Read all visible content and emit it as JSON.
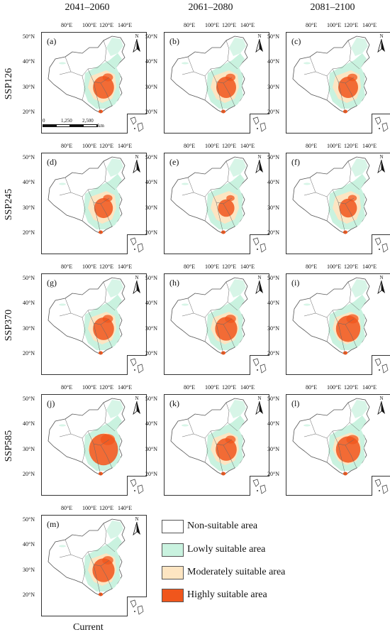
{
  "columns": [
    "2041–2060",
    "2061–2080",
    "2081–2100"
  ],
  "rows": [
    "SSP126",
    "SSP245",
    "SSP370",
    "SSP585"
  ],
  "bottom_label": "Current",
  "lon_ticks": [
    "80°E",
    "100°E",
    "120°E",
    "140°E"
  ],
  "lat_ticks": [
    "50°N",
    "40°N",
    "30°N",
    "20°N"
  ],
  "north_label": "N",
  "scale": {
    "zero": "0",
    "mid": "1,250",
    "end": "2,500",
    "unit": "km"
  },
  "panels": [
    {
      "tag": "(a)",
      "high_level": 0.55
    },
    {
      "tag": "(b)",
      "high_level": 0.5
    },
    {
      "tag": "(c)",
      "high_level": 0.5
    },
    {
      "tag": "(d)",
      "high_level": 0.45
    },
    {
      "tag": "(e)",
      "high_level": 0.35
    },
    {
      "tag": "(f)",
      "high_level": 0.4
    },
    {
      "tag": "(g)",
      "high_level": 0.55
    },
    {
      "tag": "(h)",
      "high_level": 0.6
    },
    {
      "tag": "(i)",
      "high_level": 0.7
    },
    {
      "tag": "(j)",
      "high_level": 0.9
    },
    {
      "tag": "(k)",
      "high_level": 0.55
    },
    {
      "tag": "(l)",
      "high_level": 0.7
    },
    {
      "tag": "(m)",
      "high_level": 0.6
    }
  ],
  "legend": [
    {
      "label": "Non-suitable area",
      "color": "#ffffff"
    },
    {
      "label": "Lowly suitable area",
      "color": "#c9f2df"
    },
    {
      "label": "Moderately suitable area",
      "color": "#fde5c2"
    },
    {
      "label": "Highly suitable area",
      "color": "#f0561c"
    }
  ]
}
